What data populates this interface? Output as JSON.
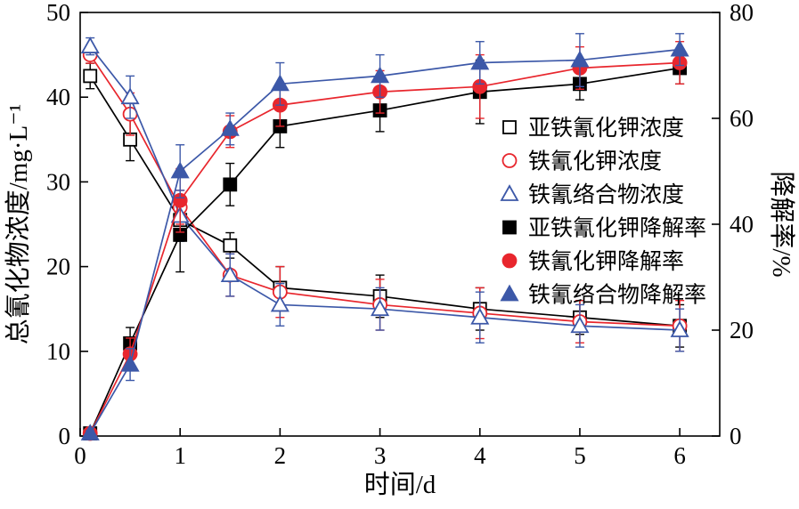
{
  "figure": {
    "background": "#ffffff",
    "frame_color": "#000000"
  },
  "chart_data": {
    "type": "line",
    "title": "",
    "xlabel": "时间/d",
    "ylabel_left": "总氰化物浓度/mg·L⁻¹",
    "ylabel_right": "降解率/%",
    "xlim": [
      0,
      6.4
    ],
    "ylim_left": [
      0,
      50
    ],
    "ylim_right": [
      0,
      80
    ],
    "xticks": [
      0,
      1,
      2,
      3,
      4,
      5,
      6
    ],
    "yticks_left": [
      0,
      10,
      20,
      30,
      40,
      50
    ],
    "yticks_right": [
      0,
      20,
      40,
      60,
      80
    ],
    "grid": false,
    "legend_position": "inside-right",
    "error_bars": true,
    "x": [
      0.1,
      0.5,
      1,
      1.5,
      2,
      3,
      4,
      5,
      6
    ],
    "series": [
      {
        "name": "亚铁氰化钾浓度",
        "axis": "left",
        "marker": "square",
        "filled": false,
        "color": "#000000",
        "values": [
          42.5,
          35,
          25.5,
          22.5,
          17.5,
          16.5,
          15,
          14,
          13
        ],
        "errors": [
          1.5,
          2.5,
          2.5,
          1.5,
          2.5,
          2.5,
          2.5,
          2,
          2.5
        ]
      },
      {
        "name": "铁氰化钾浓度",
        "axis": "left",
        "marker": "circle",
        "filled": false,
        "color": "#e8262d",
        "values": [
          45,
          38,
          27,
          19,
          17,
          15.5,
          14.5,
          13.5,
          13
        ],
        "errors": [
          1,
          2.5,
          2,
          2.5,
          3,
          3,
          3,
          2.5,
          3
        ]
      },
      {
        "name": "铁氰络合物浓度",
        "axis": "left",
        "marker": "triangle",
        "filled": false,
        "color": "#3c58a8",
        "values": [
          46,
          40,
          26,
          19,
          15.5,
          15,
          14,
          13,
          12.5
        ],
        "errors": [
          1,
          2.5,
          3,
          2.5,
          2.5,
          2.5,
          3,
          2.5,
          2.5
        ]
      },
      {
        "name": "亚铁氰化钾降解率",
        "axis": "right",
        "marker": "square",
        "filled": true,
        "color": "#000000",
        "values": [
          0.5,
          17.5,
          38,
          47.5,
          58.5,
          61.5,
          65,
          66.5,
          69.5
        ],
        "errors": [
          0.5,
          3,
          7,
          4,
          4,
          4,
          6,
          3,
          3
        ]
      },
      {
        "name": "铁氰化钾降解率",
        "axis": "right",
        "marker": "circle",
        "filled": true,
        "color": "#e8262d",
        "values": [
          0.5,
          15.5,
          44.5,
          57.5,
          62.5,
          65,
          66,
          69.5,
          70.5
        ],
        "errors": [
          0.5,
          3,
          6,
          3,
          4,
          4,
          6,
          4,
          4
        ]
      },
      {
        "name": "铁氰络合物降解率",
        "axis": "right",
        "marker": "triangle",
        "filled": true,
        "color": "#3c58a8",
        "values": [
          0.5,
          13.5,
          50,
          58,
          66.5,
          68,
          70.5,
          71,
          73
        ],
        "errors": [
          0.5,
          3,
          5,
          3,
          4,
          4,
          4,
          5,
          3
        ]
      }
    ]
  }
}
